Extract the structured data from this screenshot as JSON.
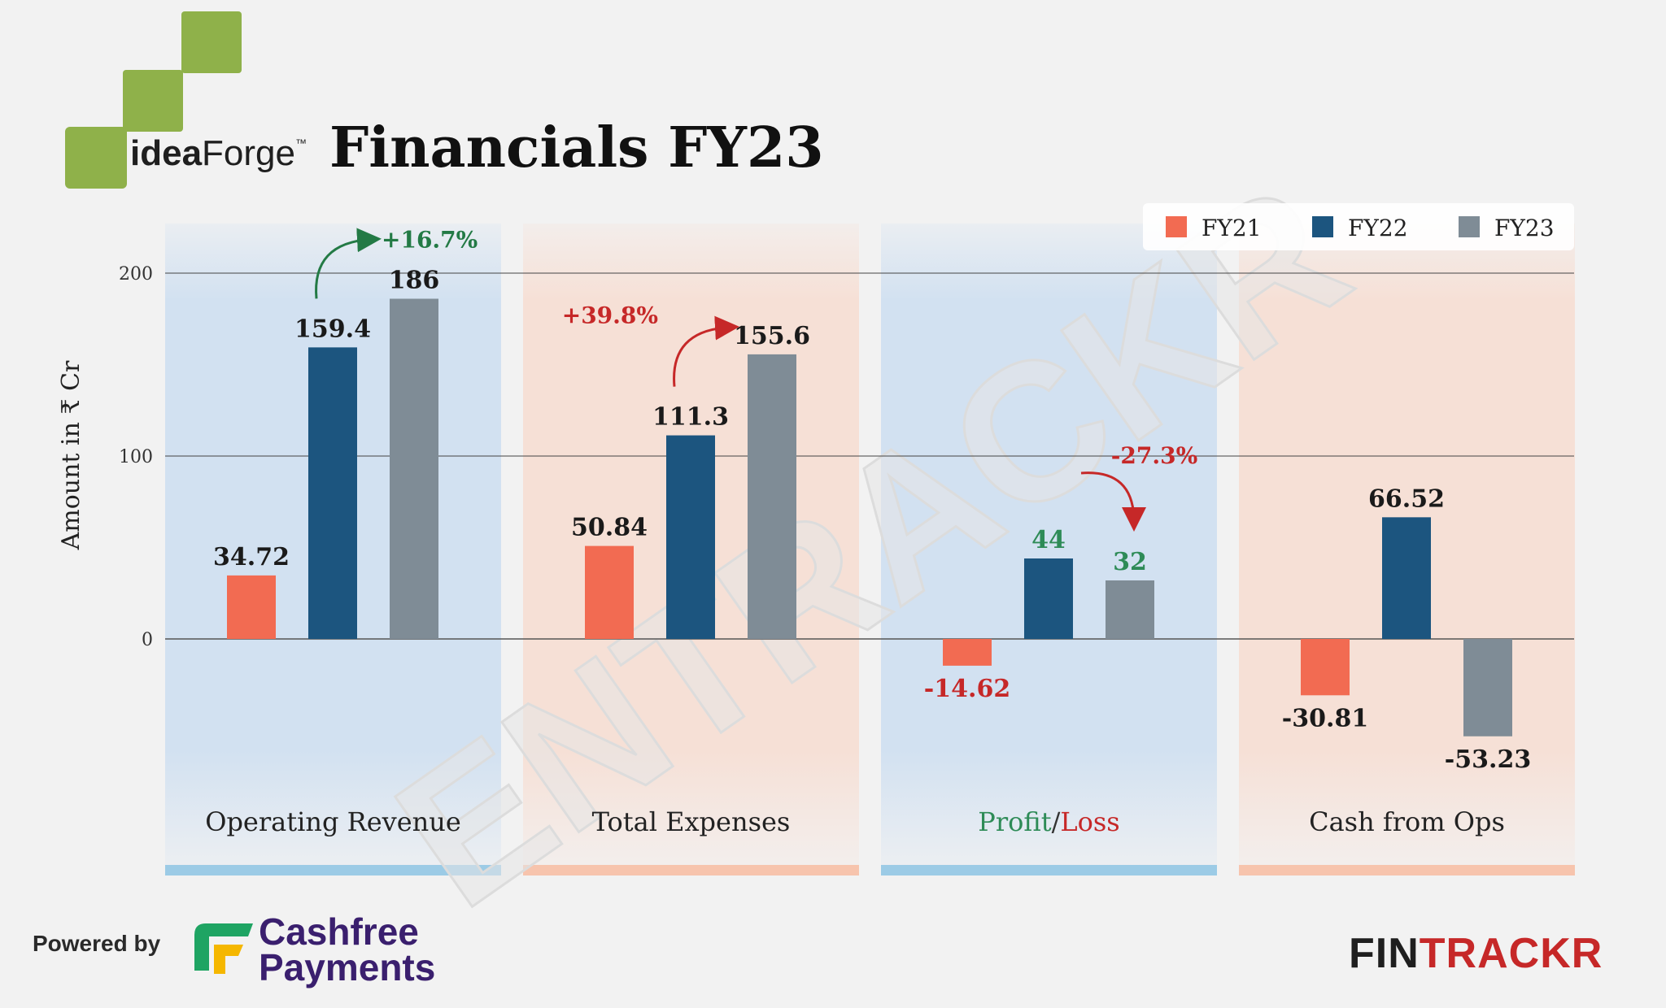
{
  "brand": {
    "company_logo_text_bold": "idea",
    "company_logo_text_regular": "Forge",
    "company_logo_tm": "™",
    "logo_color": "#8fb14a"
  },
  "header": {
    "title": "Financials FY23"
  },
  "footer": {
    "powered_by": "Powered by",
    "sponsor_line1": "Cashfree",
    "sponsor_line2": "Payments",
    "publisher_a": "FIN",
    "publisher_b": "TRACKR"
  },
  "watermark": "ENTRACKR",
  "chart_data": {
    "type": "bar",
    "ylabel": "Amount in ₹ Cr",
    "ylim": [
      -100,
      200
    ],
    "yticks": [
      0,
      100,
      200
    ],
    "grid": true,
    "legend_position": "top-right",
    "categories": [
      "Operating Revenue",
      "Total Expenses",
      "Profit/Loss",
      "Cash from Ops"
    ],
    "category_label_parts": {
      "Profit/Loss": [
        {
          "text": "Profit",
          "color": "#2e8b57"
        },
        {
          "text": "/",
          "color": "#333333"
        },
        {
          "text": "Loss",
          "color": "#c62828"
        }
      ]
    },
    "series": [
      {
        "name": "FY21",
        "color": "#f26b52",
        "values": [
          34.72,
          50.84,
          -14.62,
          -30.81
        ],
        "labels": [
          "34.72",
          "50.84",
          "-14.62",
          "-30.81"
        ]
      },
      {
        "name": "FY22",
        "color": "#1c557f",
        "values": [
          159.4,
          111.3,
          44,
          66.52
        ],
        "labels": [
          "159.4",
          "111.3",
          "44",
          "66.52"
        ]
      },
      {
        "name": "FY23",
        "color": "#7f8c96",
        "values": [
          186,
          155.6,
          32,
          -53.23
        ],
        "labels": [
          "186",
          "155.6",
          "32",
          "-53.23"
        ]
      }
    ],
    "label_colors": [
      [
        "#1a1a1a",
        "#1a1a1a",
        "#1a1a1a"
      ],
      [
        "#1a1a1a",
        "#1a1a1a",
        "#1a1a1a"
      ],
      [
        "#c62828",
        "#2e8b57",
        "#2e8b57"
      ],
      [
        "#1a1a1a",
        "#1a1a1a",
        "#1a1a1a"
      ]
    ],
    "panel_colors": [
      "#d2e1f1",
      "#f6e0d6",
      "#d2e1f1",
      "#f6e0d6"
    ],
    "underline_colors": [
      "#9ccbe6",
      "#f7c4ad",
      "#9ccbe6",
      "#f7c4ad"
    ],
    "annotations": [
      {
        "category": 0,
        "text": "+16.7%",
        "color": "#237a45"
      },
      {
        "category": 1,
        "text": "+39.8%",
        "color": "#c62828"
      },
      {
        "category": 2,
        "text": "-27.3%",
        "color": "#c62828"
      }
    ]
  }
}
